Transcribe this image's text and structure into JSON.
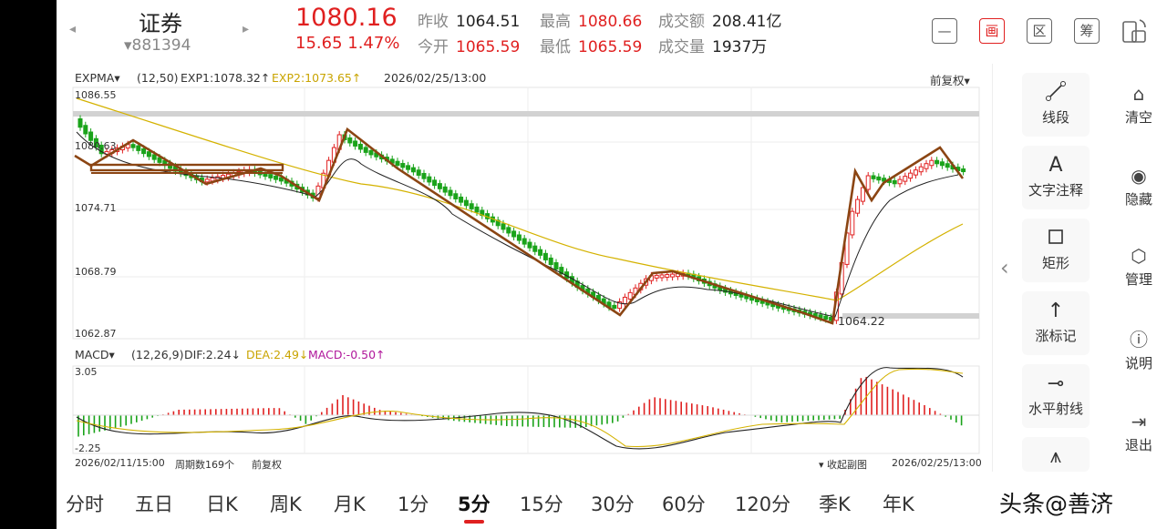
{
  "header": {
    "name": "证券",
    "code": "▾881394",
    "price": "1080.16",
    "change": "15.65  1.47%",
    "stats": [
      {
        "k": "昨收",
        "v": "1064.51",
        "red": false
      },
      {
        "k": "最高",
        "v": "1080.66",
        "red": true
      },
      {
        "k": "成交额",
        "v": "208.41亿",
        "red": false
      },
      {
        "k": "今开",
        "v": "1065.59",
        "red": true
      },
      {
        "k": "最低",
        "v": "1065.59",
        "red": true
      },
      {
        "k": "成交量",
        "v": "1937万",
        "red": false
      }
    ],
    "toolbar": [
      "—",
      "画",
      "区",
      "筹"
    ]
  },
  "main_chart": {
    "indicator": "EXPMA",
    "params": "(12,50)",
    "exp1": "EXP1:1078.32↑",
    "exp2": "EXP2:1073.65↑",
    "datetime": "2026/02/25/13:00",
    "adjust": "前复权",
    "y_ticks": [
      "1086.55",
      "1080.63",
      "1074.71",
      "1068.79",
      "1062.87"
    ],
    "low_label": "1064.22"
  },
  "macd_chart": {
    "indicator": "MACD",
    "params": "(12,26,9)",
    "dif": "DIF:2.24↓",
    "dea": "DEA:2.49↓",
    "macd": "MACD:-0.50↑",
    "y_ticks": [
      "3.05",
      "-2.25"
    ]
  },
  "footer": {
    "start": "2026/02/11/15:00",
    "count": "周期数169个",
    "adjust": "前复权",
    "collapse": "收起副图",
    "end": "2026/02/25/13:00"
  },
  "tools": [
    {
      "label": "线段",
      "icon": "line-segment-icon"
    },
    {
      "label": "文字注释",
      "icon": "text-annotation-icon"
    },
    {
      "label": "矩形",
      "icon": "rectangle-icon"
    },
    {
      "label": "涨标记",
      "icon": "rise-mark-icon"
    },
    {
      "label": "水平射线",
      "icon": "horizontal-ray-icon"
    }
  ],
  "actions": [
    {
      "label": "清空",
      "icon": "clear-icon"
    },
    {
      "label": "隐藏",
      "icon": "eye-icon"
    },
    {
      "label": "管理",
      "icon": "manage-icon"
    },
    {
      "label": "说明",
      "icon": "help-icon"
    },
    {
      "label": "退出",
      "icon": "exit-icon"
    }
  ],
  "tabs": [
    "分时",
    "五日",
    "日K",
    "周K",
    "月K",
    "1分",
    "5分",
    "15分",
    "30分",
    "60分",
    "120分",
    "季K",
    "年K"
  ],
  "active_tab": "5分",
  "watermark": "头条@善济",
  "colors": {
    "up": "#e02020",
    "down": "#1aa31a",
    "exp1": "#222222",
    "exp2": "#d4b200",
    "dea": "#d4b200",
    "macd": "#b0179b",
    "drawing": "#8b4513"
  }
}
